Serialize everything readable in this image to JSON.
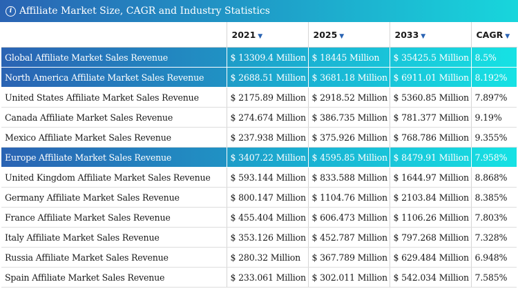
{
  "title": "Affiliate Market Size, CAGR and Industry Statistics",
  "colors": {
    "accent_start": "#2a63b3",
    "accent_end": "#18d6dc"
  },
  "columns": [
    "",
    "2021",
    "2025",
    "2033",
    "CAGR"
  ],
  "rows": [
    {
      "highlight": true,
      "cells": [
        "Global Affiliate Market Sales Revenue",
        "$ 13309.4 Million",
        "$ 18445 Million",
        "$ 35425.5 Million",
        "8.5%"
      ]
    },
    {
      "highlight": true,
      "cells": [
        "North America Affiliate Market Sales Revenue",
        "$ 2688.51 Million",
        "$ 3681.18 Million",
        "$ 6911.01 Million",
        "8.192%"
      ]
    },
    {
      "highlight": false,
      "cells": [
        "United States Affiliate Market Sales Revenue",
        "$ 2175.89 Million",
        "$ 2918.52 Million",
        "$ 5360.85 Million",
        "7.897%"
      ]
    },
    {
      "highlight": false,
      "cells": [
        "Canada Affiliate Market Sales Revenue",
        "$ 274.674 Million",
        "$ 386.735 Million",
        "$ 781.377 Million",
        "9.19%"
      ]
    },
    {
      "highlight": false,
      "cells": [
        "Mexico Affiliate Market Sales Revenue",
        "$ 237.938 Million",
        "$ 375.926 Million",
        "$ 768.786 Million",
        "9.355%"
      ]
    },
    {
      "highlight": true,
      "cells": [
        "Europe Affiliate Market Sales Revenue",
        "$ 3407.22 Million",
        "$ 4595.85 Million",
        "$ 8479.91 Million",
        "7.958%"
      ]
    },
    {
      "highlight": false,
      "cells": [
        "United Kingdom Affiliate Market Sales Revenue",
        "$ 593.144 Million",
        "$ 833.588 Million",
        "$ 1644.97 Million",
        "8.868%"
      ]
    },
    {
      "highlight": false,
      "cells": [
        "Germany Affiliate Market Sales Revenue",
        "$ 800.147 Million",
        "$ 1104.76 Million",
        "$ 2103.84 Million",
        "8.385%"
      ]
    },
    {
      "highlight": false,
      "cells": [
        "France Affiliate Market Sales Revenue",
        "$ 455.404 Million",
        "$ 606.473 Million",
        "$ 1106.26 Million",
        "7.803%"
      ]
    },
    {
      "highlight": false,
      "cells": [
        "Italy Affiliate Market Sales Revenue",
        "$ 353.126 Million",
        "$ 452.787 Million",
        "$ 797.268 Million",
        "7.328%"
      ]
    },
    {
      "highlight": false,
      "cells": [
        "Russia Affiliate Market Sales Revenue",
        "$ 280.32 Million",
        "$ 367.789 Million",
        "$ 629.484 Million",
        "6.948%"
      ]
    },
    {
      "highlight": false,
      "cells": [
        "Spain Affiliate Market Sales Revenue",
        "$ 233.061 Million",
        "$ 302.011 Million",
        "$ 542.034 Million",
        "7.585%"
      ]
    }
  ]
}
